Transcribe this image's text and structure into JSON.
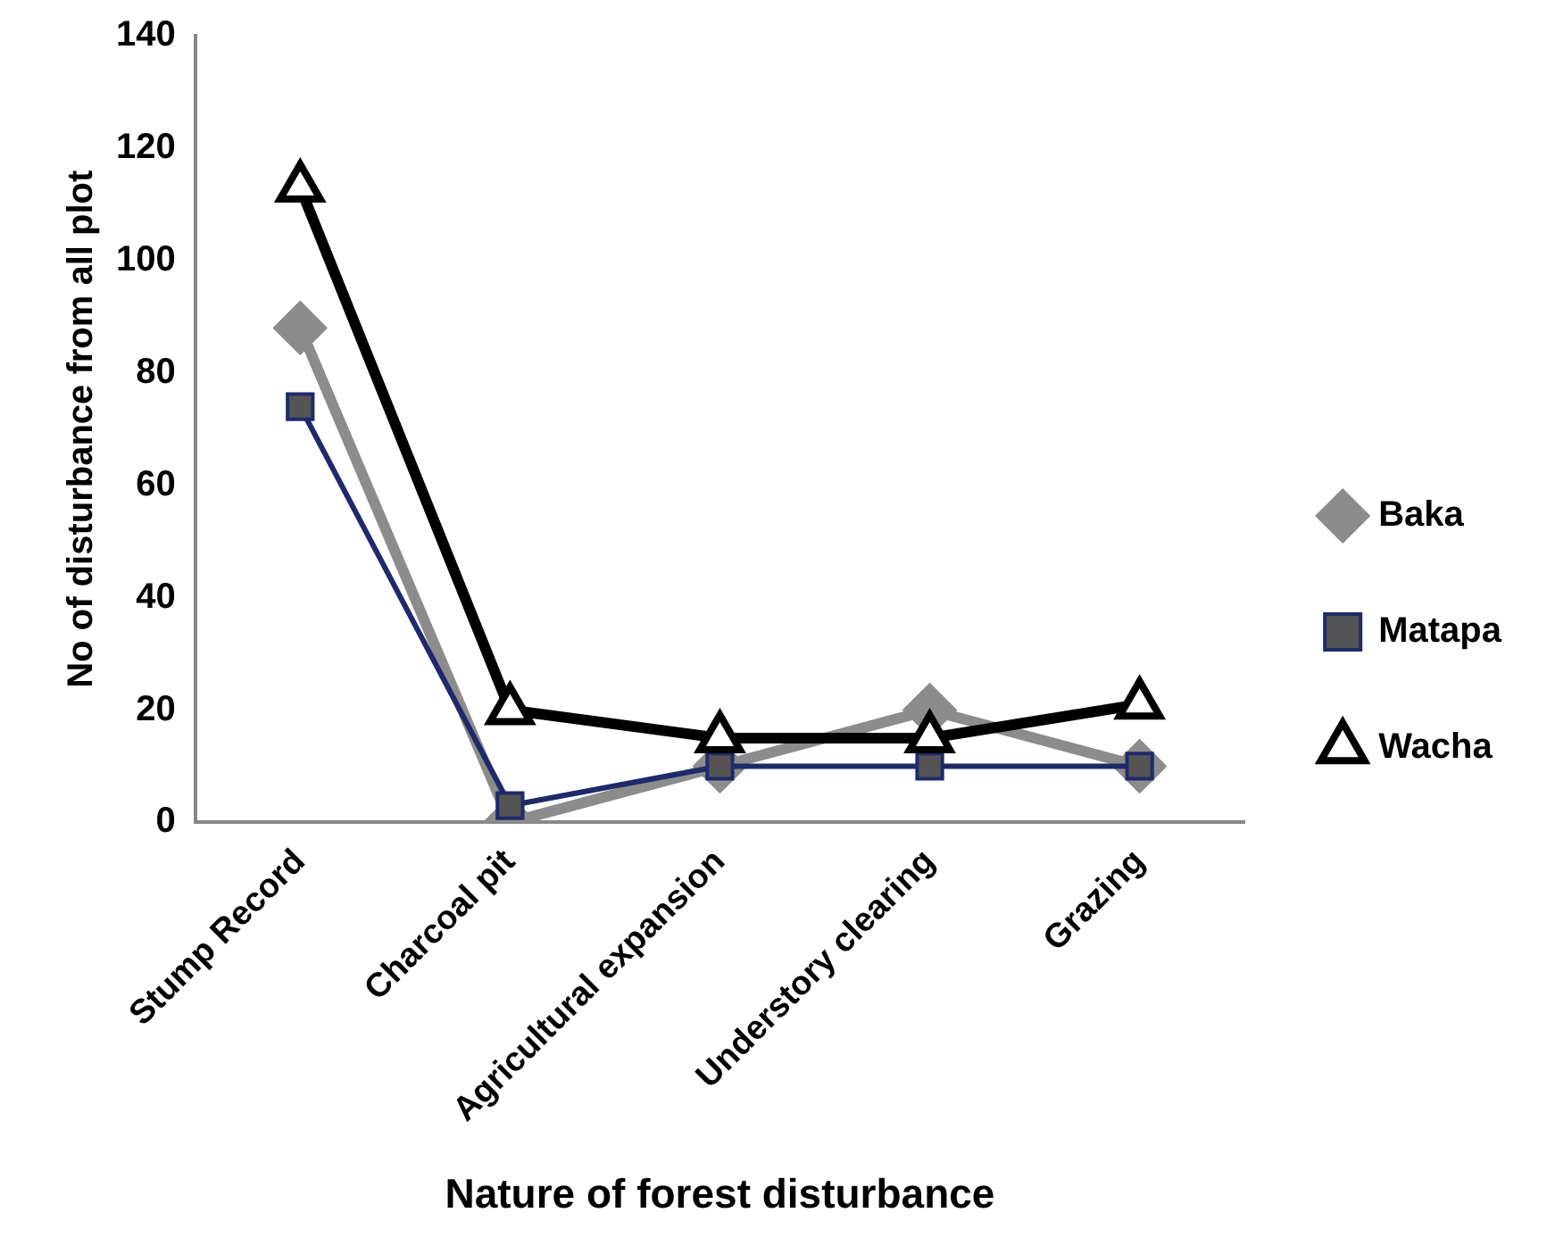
{
  "chart_data": {
    "type": "line",
    "xlabel": "Nature of forest disturbance",
    "ylabel": "No of disturbance from all plot",
    "categories": [
      "Stump Record",
      "Charcoal pit",
      "Agricultural expansion",
      "Understory clearing",
      "Grazing"
    ],
    "series": [
      {
        "name": "Baka",
        "color": "#8c8c8c",
        "marker": "diamond",
        "values": [
          88,
          0,
          10,
          20,
          10
        ]
      },
      {
        "name": "Matapa",
        "color": "#1f2a6b",
        "marker": "square",
        "values": [
          74,
          3,
          10,
          10,
          10
        ]
      },
      {
        "name": "Wacha",
        "color": "#000000",
        "marker": "triangle",
        "values": [
          113,
          20,
          15,
          15,
          21
        ]
      }
    ],
    "ylim": [
      0,
      140
    ],
    "yticks": [
      0,
      20,
      40,
      60,
      80,
      100,
      120,
      140
    ],
    "grid": false,
    "legend": "right"
  }
}
